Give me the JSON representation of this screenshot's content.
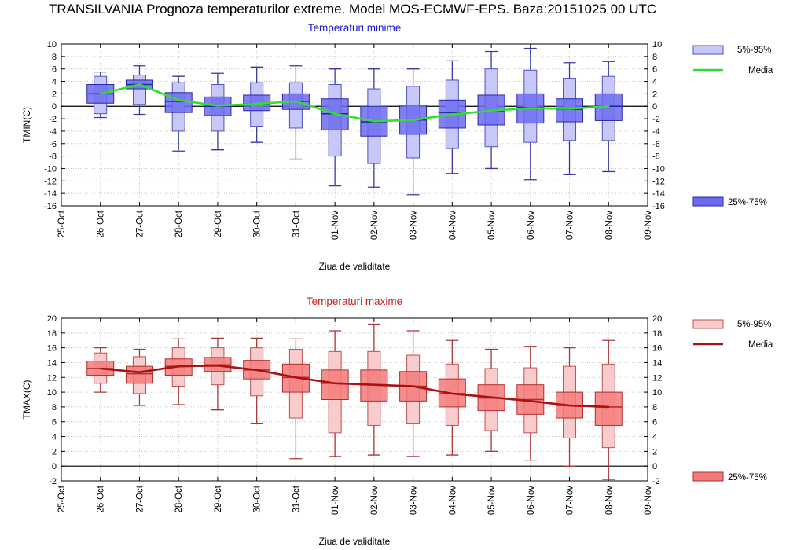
{
  "page": {
    "title": "TRANSILVANIA  Prognoza temperaturilor extreme.  Model MOS-ECMWF-EPS. Baza:20151025 00 UTC"
  },
  "legend_labels": {
    "range_5_95": "5%-95%",
    "media": "Media",
    "range_25_75": "25%-75%"
  },
  "chart_data": [
    {
      "type": "boxplot",
      "title": "Temperaturi minime",
      "ylabel": "TMIN(C)",
      "xlabel": "Ziua de validitate",
      "ylim": [
        -16,
        10
      ],
      "yticks": [
        10,
        8,
        6,
        4,
        2,
        0,
        -2,
        -4,
        -6,
        -8,
        -10,
        -12,
        -14,
        -16
      ],
      "categories": [
        "25-Oct",
        "26-Oct",
        "27-Oct",
        "28-Oct",
        "29-Oct",
        "30-Oct",
        "31-Oct",
        "01-Nov",
        "02-Nov",
        "03-Nov",
        "04-Nov",
        "05-Nov",
        "06-Nov",
        "07-Nov",
        "08-Nov",
        "09-Nov"
      ],
      "grid": true,
      "legend_position": "right",
      "colors": {
        "title": "#1a1acc",
        "inner_fill": "#6b6bf0",
        "inner_stroke": "#2a2aa8",
        "outer_fill": "#c8c8f8",
        "outer_stroke": "#5050c0",
        "whisker": "#3a3aa0",
        "media": "#33dd33"
      },
      "boxes": [
        {
          "x": "26-Oct",
          "min": -1.8,
          "p5": -1.2,
          "p25": 0.5,
          "median": 2.0,
          "p75": 3.5,
          "p95": 4.8,
          "max": 5.5
        },
        {
          "x": "27-Oct",
          "min": -1.3,
          "p5": 0.3,
          "p25": 2.8,
          "median": 3.5,
          "p75": 4.2,
          "p95": 5.0,
          "max": 6.5
        },
        {
          "x": "28-Oct",
          "min": -7.2,
          "p5": -4.0,
          "p25": -1.0,
          "median": 0.8,
          "p75": 2.2,
          "p95": 3.8,
          "max": 4.8
        },
        {
          "x": "29-Oct",
          "min": -7.0,
          "p5": -4.0,
          "p25": -1.5,
          "median": 0.0,
          "p75": 1.5,
          "p95": 3.5,
          "max": 5.3
        },
        {
          "x": "30-Oct",
          "min": -5.8,
          "p5": -3.2,
          "p25": -0.7,
          "median": 0.4,
          "p75": 1.8,
          "p95": 3.8,
          "max": 6.3
        },
        {
          "x": "31-Oct",
          "min": -8.5,
          "p5": -3.5,
          "p25": -0.5,
          "median": 0.8,
          "p75": 2.0,
          "p95": 3.8,
          "max": 6.5
        },
        {
          "x": "01-Nov",
          "min": -12.8,
          "p5": -8.0,
          "p25": -3.8,
          "median": -1.2,
          "p75": 1.2,
          "p95": 3.5,
          "max": 6.0
        },
        {
          "x": "02-Nov",
          "min": -13.0,
          "p5": -9.2,
          "p25": -4.8,
          "median": -2.5,
          "p75": 0.0,
          "p95": 2.8,
          "max": 6.0
        },
        {
          "x": "03-Nov",
          "min": -14.2,
          "p5": -8.3,
          "p25": -4.5,
          "median": -2.2,
          "p75": 0.2,
          "p95": 3.2,
          "max": 6.0
        },
        {
          "x": "04-Nov",
          "min": -10.8,
          "p5": -6.8,
          "p25": -3.5,
          "median": -1.0,
          "p75": 1.0,
          "p95": 4.2,
          "max": 7.3
        },
        {
          "x": "05-Nov",
          "min": -10.0,
          "p5": -6.5,
          "p25": -3.0,
          "median": -0.8,
          "p75": 1.8,
          "p95": 6.0,
          "max": 8.8
        },
        {
          "x": "06-Nov",
          "min": -11.8,
          "p5": -5.8,
          "p25": -2.7,
          "median": -0.2,
          "p75": 2.0,
          "p95": 5.8,
          "max": 9.3
        },
        {
          "x": "07-Nov",
          "min": -11.0,
          "p5": -5.5,
          "p25": -2.5,
          "median": -0.5,
          "p75": 1.2,
          "p95": 4.5,
          "max": 7.0
        },
        {
          "x": "08-Nov",
          "min": -10.5,
          "p5": -5.5,
          "p25": -2.3,
          "median": 0.0,
          "p75": 2.0,
          "p95": 4.8,
          "max": 7.2
        }
      ],
      "media": [
        {
          "x": "26-Oct",
          "y": 2.0
        },
        {
          "x": "27-Oct",
          "y": 3.5
        },
        {
          "x": "28-Oct",
          "y": 1.0
        },
        {
          "x": "29-Oct",
          "y": 0.1
        },
        {
          "x": "30-Oct",
          "y": 0.4
        },
        {
          "x": "31-Oct",
          "y": 0.8
        },
        {
          "x": "01-Nov",
          "y": -1.2
        },
        {
          "x": "02-Nov",
          "y": -2.4
        },
        {
          "x": "03-Nov",
          "y": -2.2
        },
        {
          "x": "04-Nov",
          "y": -1.3
        },
        {
          "x": "05-Nov",
          "y": -0.7
        },
        {
          "x": "06-Nov",
          "y": -0.3
        },
        {
          "x": "07-Nov",
          "y": -0.4
        },
        {
          "x": "08-Nov",
          "y": 0.0
        }
      ]
    },
    {
      "type": "boxplot",
      "title": "Temperaturi maxime",
      "ylabel": "TMAX(C)",
      "xlabel": "Ziua de validitate",
      "ylim": [
        -2,
        20
      ],
      "yticks": [
        20,
        18,
        16,
        14,
        12,
        10,
        8,
        6,
        4,
        2,
        0,
        -2
      ],
      "categories": [
        "25-Oct",
        "26-Oct",
        "27-Oct",
        "28-Oct",
        "29-Oct",
        "30-Oct",
        "31-Oct",
        "01-Nov",
        "02-Nov",
        "03-Nov",
        "04-Nov",
        "05-Nov",
        "06-Nov",
        "07-Nov",
        "08-Nov",
        "09-Nov"
      ],
      "grid": true,
      "legend_position": "right",
      "colors": {
        "title": "#cc2222",
        "inner_fill": "#f57a7a",
        "inner_stroke": "#b03030",
        "outer_fill": "#f8cccc",
        "outer_stroke": "#c05050",
        "whisker": "#a83838",
        "media": "#aa1111"
      },
      "boxes": [
        {
          "x": "26-Oct",
          "min": 10.0,
          "p5": 11.2,
          "p25": 12.3,
          "median": 13.2,
          "p75": 14.2,
          "p95": 15.3,
          "max": 16.0
        },
        {
          "x": "27-Oct",
          "min": 8.2,
          "p5": 9.8,
          "p25": 11.2,
          "median": 12.5,
          "p75": 13.5,
          "p95": 14.8,
          "max": 15.8
        },
        {
          "x": "28-Oct",
          "min": 8.3,
          "p5": 10.8,
          "p25": 12.3,
          "median": 13.5,
          "p75": 14.5,
          "p95": 16.0,
          "max": 17.2
        },
        {
          "x": "29-Oct",
          "min": 7.6,
          "p5": 11.0,
          "p25": 12.8,
          "median": 13.7,
          "p75": 14.7,
          "p95": 16.0,
          "max": 17.3
        },
        {
          "x": "30-Oct",
          "min": 5.8,
          "p5": 9.5,
          "p25": 11.8,
          "median": 13.0,
          "p75": 14.3,
          "p95": 16.0,
          "max": 17.3
        },
        {
          "x": "31-Oct",
          "min": 1.0,
          "p5": 6.5,
          "p25": 10.0,
          "median": 12.0,
          "p75": 13.8,
          "p95": 15.8,
          "max": 17.2
        },
        {
          "x": "01-Nov",
          "min": 1.3,
          "p5": 4.5,
          "p25": 9.0,
          "median": 11.2,
          "p75": 13.0,
          "p95": 15.5,
          "max": 18.3
        },
        {
          "x": "02-Nov",
          "min": 1.5,
          "p5": 5.5,
          "p25": 8.8,
          "median": 11.0,
          "p75": 13.0,
          "p95": 15.5,
          "max": 19.2
        },
        {
          "x": "03-Nov",
          "min": 1.3,
          "p5": 5.8,
          "p25": 8.8,
          "median": 10.8,
          "p75": 12.8,
          "p95": 15.0,
          "max": 18.3
        },
        {
          "x": "04-Nov",
          "min": 1.5,
          "p5": 5.5,
          "p25": 8.0,
          "median": 9.8,
          "p75": 11.8,
          "p95": 13.8,
          "max": 17.0
        },
        {
          "x": "05-Nov",
          "min": 2.0,
          "p5": 4.8,
          "p25": 7.5,
          "median": 9.2,
          "p75": 11.0,
          "p95": 13.2,
          "max": 15.8
        },
        {
          "x": "06-Nov",
          "min": 0.8,
          "p5": 4.5,
          "p25": 7.0,
          "median": 9.0,
          "p75": 11.0,
          "p95": 13.3,
          "max": 16.2
        },
        {
          "x": "07-Nov",
          "min": 0.0,
          "p5": 3.8,
          "p25": 6.5,
          "median": 8.2,
          "p75": 10.0,
          "p95": 13.5,
          "max": 16.0
        },
        {
          "x": "08-Nov",
          "min": -1.8,
          "p5": 2.5,
          "p25": 5.5,
          "median": 8.0,
          "p75": 10.0,
          "p95": 13.8,
          "max": 17.0
        }
      ],
      "media": [
        {
          "x": "26-Oct",
          "y": 13.2
        },
        {
          "x": "27-Oct",
          "y": 12.7
        },
        {
          "x": "28-Oct",
          "y": 13.5
        },
        {
          "x": "29-Oct",
          "y": 13.6
        },
        {
          "x": "30-Oct",
          "y": 13.0
        },
        {
          "x": "31-Oct",
          "y": 12.0
        },
        {
          "x": "01-Nov",
          "y": 11.2
        },
        {
          "x": "02-Nov",
          "y": 11.0
        },
        {
          "x": "03-Nov",
          "y": 10.8
        },
        {
          "x": "04-Nov",
          "y": 9.8
        },
        {
          "x": "05-Nov",
          "y": 9.3
        },
        {
          "x": "06-Nov",
          "y": 8.8
        },
        {
          "x": "07-Nov",
          "y": 8.2
        },
        {
          "x": "08-Nov",
          "y": 8.0
        }
      ]
    }
  ]
}
